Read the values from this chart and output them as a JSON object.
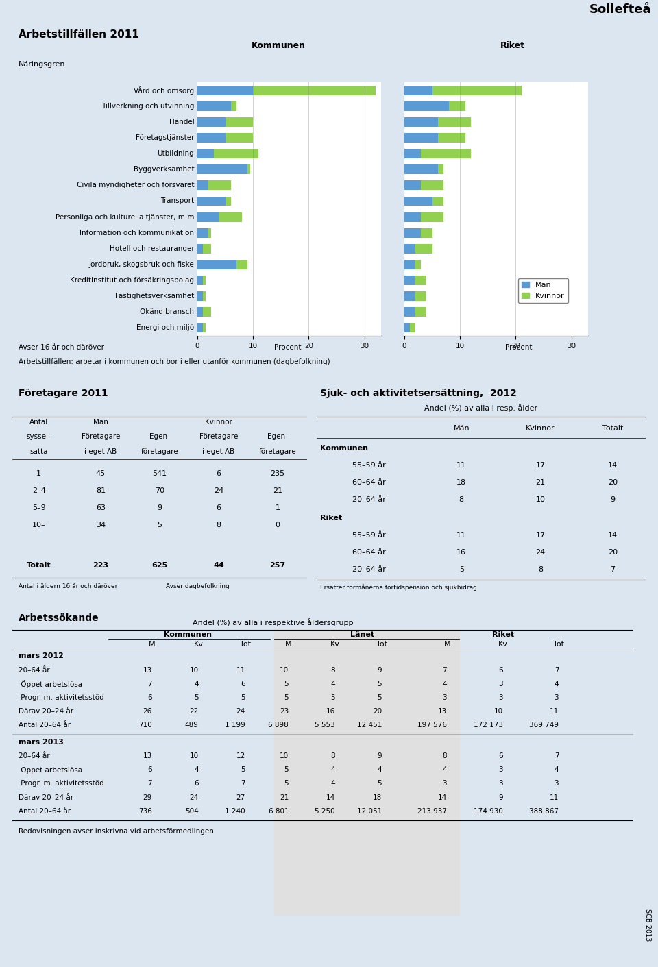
{
  "title": "Sollefteå",
  "section1_title": "Arbetstillfällen 2011",
  "naringsgren_label": "Näringsgren",
  "kommunen_label": "Kommunen",
  "riket_label": "Riket",
  "procent_label": "Procent",
  "avser_label": "Avser 16 år och däröver",
  "note1": "Arbetstillfällen: arbetar i kommunen och bor i eller utanför kommunen (dagbefolkning)",
  "categories": [
    "Vård och omsorg",
    "Tillverkning och utvinning",
    "Handel",
    "Företagstjänster",
    "Utbildning",
    "Byggverksamhet",
    "Civila myndigheter och försvaret",
    "Transport",
    "Personliga och kulturella tjänster, m.m",
    "Information och kommunikation",
    "Hotell och restauranger",
    "Jordbruk, skogsbruk och fiske",
    "Kreditinstitut och försäkringsbolag",
    "Fastighetsverksamhet",
    "Okänd bransch",
    "Energi och miljö"
  ],
  "kommunen_man": [
    10,
    6,
    5,
    5,
    3,
    9,
    2,
    5,
    4,
    2,
    1,
    7,
    1,
    1,
    1,
    1
  ],
  "kommunen_kvinnor": [
    22,
    1,
    5,
    5,
    8,
    0.5,
    4,
    1,
    4,
    0.5,
    1.5,
    2,
    0.5,
    0.5,
    1.5,
    0.5
  ],
  "riket_man": [
    5,
    8,
    6,
    6,
    3,
    6,
    3,
    5,
    3,
    3,
    2,
    2,
    2,
    2,
    2,
    1
  ],
  "riket_kvinnor": [
    16,
    3,
    6,
    5,
    9,
    1,
    4,
    2,
    4,
    2,
    3,
    1,
    2,
    2,
    2,
    1
  ],
  "color_man": "#5b9bd5",
  "color_kvinnor": "#92d050",
  "legend_man": "Män",
  "legend_kvinnor": "Kvinnor",
  "bar_xlim": 33,
  "bar_xticks": [
    0,
    10,
    20,
    30
  ],
  "section2_title": "Företagare 2011",
  "ft_rows": [
    [
      "1",
      "45",
      "541",
      "6",
      "235"
    ],
    [
      "2–4",
      "81",
      "70",
      "24",
      "21"
    ],
    [
      "5–9",
      "63",
      "9",
      "6",
      "1"
    ],
    [
      "10–",
      "34",
      "5",
      "8",
      "0"
    ],
    [
      "",
      "",
      "",
      "",
      ""
    ],
    [
      "Totalt",
      "223",
      "625",
      "44",
      "257"
    ]
  ],
  "ft_note1": "Antal i åldern 16 år och däröver",
  "ft_note2": "Avser dagbefolkning",
  "section3_title": "Sjuk- och aktivitetsersättning,  2012",
  "sak_subtitle": "Andel (%) av alla i resp. ålder",
  "sak_rows": [
    [
      "Kommunen",
      "",
      "",
      ""
    ],
    [
      "55–59 år",
      "11",
      "17",
      "14"
    ],
    [
      "60–64 år",
      "18",
      "21",
      "20"
    ],
    [
      "20–64 år",
      "8",
      "10",
      "9"
    ],
    [
      "Riket",
      "",
      "",
      ""
    ],
    [
      "55–59 år",
      "11",
      "17",
      "14"
    ],
    [
      "60–64 år",
      "16",
      "24",
      "20"
    ],
    [
      "20–64 år",
      "5",
      "8",
      "7"
    ]
  ],
  "sak_note": "Ersätter förmånerna förtidspension och sjukbidrag",
  "section4_title": "Arbetssökande",
  "as_subtitle": "Andel (%) av alla i respektive åldersgrupp",
  "as_rows_2012": [
    [
      "20–64 år",
      "13",
      "10",
      "11",
      "10",
      "8",
      "9",
      "7",
      "6",
      "7"
    ],
    [
      " Öppet arbetslösa",
      "7",
      "4",
      "6",
      "5",
      "4",
      "5",
      "4",
      "3",
      "4"
    ],
    [
      " Progr. m. aktivitetsstöd",
      "6",
      "5",
      "5",
      "5",
      "5",
      "5",
      "3",
      "3",
      "3"
    ],
    [
      "Därav 20–24 år",
      "26",
      "22",
      "24",
      "23",
      "16",
      "20",
      "13",
      "10",
      "11"
    ],
    [
      "Antal 20–64 år",
      "710",
      "489",
      "1 199",
      "6 898",
      "5 553",
      "12 451",
      "197 576",
      "172 173",
      "369 749"
    ]
  ],
  "as_rows_2013": [
    [
      "20–64 år",
      "13",
      "10",
      "12",
      "10",
      "8",
      "9",
      "8",
      "6",
      "7"
    ],
    [
      " Öppet arbetslösa",
      "6",
      "4",
      "5",
      "5",
      "4",
      "4",
      "4",
      "3",
      "4"
    ],
    [
      " Progr. m. aktivitetsstöd",
      "7",
      "6",
      "7",
      "5",
      "4",
      "5",
      "3",
      "3",
      "3"
    ],
    [
      "Därav 20–24 år",
      "29",
      "24",
      "27",
      "21",
      "14",
      "18",
      "14",
      "9",
      "11"
    ],
    [
      "Antal 20–64 år",
      "736",
      "504",
      "1 240",
      "6 801",
      "5 250",
      "12 051",
      "213 937",
      "174 930",
      "388 867"
    ]
  ],
  "as_note": "Redovisningen avser inskrivna vid arbetsförmedlingen",
  "scb_note": "SCB 2013",
  "bg_color": "#dce6f1",
  "panel_bg": "#ffffff"
}
